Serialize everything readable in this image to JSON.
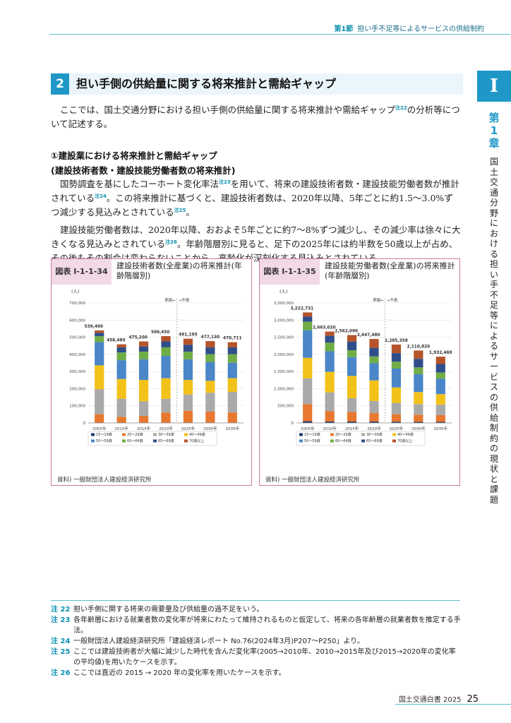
{
  "header": {
    "section": "第1節",
    "title": "担い手不足等によるサービスの供給制約"
  },
  "side": {
    "roman": "I",
    "chapter": [
      "第",
      "1",
      "章"
    ],
    "title": [
      "国",
      "土",
      "交",
      "通",
      "分",
      "野",
      "に",
      "お",
      "け",
      "る",
      "担",
      "い",
      "手",
      "不",
      "足",
      "等",
      "に",
      "よ",
      "る",
      "サ",
      "ー",
      "ビ",
      "ス",
      "の",
      "供",
      "給",
      "制",
      "約",
      "の",
      "現",
      "状",
      "と",
      "課",
      "題"
    ]
  },
  "section": {
    "number": "2",
    "title": "担い手側の供給量に関する将来推計と需給ギャップ"
  },
  "intro": {
    "text1": "ここでは、国土交通分野における担い手側の供給量に関する将来推計や需給ギャップ",
    "sup1": "注22",
    "text2": "の分析等について記述する。"
  },
  "sub1": "①建設業における将来推計と需給ギャップ",
  "sub2": "(建設技術者数・建設技能労働者数の将来推計)",
  "para1": {
    "t1": "国勢調査を基にしたコーホート変化率法",
    "s1": "注23",
    "t2": "を用いて、将来の建設技術者数・建設技能労働者数が推計されている",
    "s2": "注24",
    "t3": "。この将来推計に基づくと、建設技術者数は、2020年以降、5年ごとに約1.5～3.0%ずつ減少する見込みとされている",
    "s3": "注25",
    "t4": "。"
  },
  "para2": {
    "t1": "建設技能労働者数は、2020年以降、おおよそ5年ごとに約7～8%ずつ減少し、その減少率は徐々に大きくなる見込みとされている",
    "s1": "注26",
    "t2": "。年齢階層別に見ると、足下の2025年には約半数を50歳以上が占め、その後もその割合は変わらないことから、高齢化が深刻化する見込みとされている。"
  },
  "figure_left": {
    "label": "図表 I-1-1-34",
    "title": "建設技術者数(全産業)の将来推計(年齢階層別)",
    "source": "資料) 一般財団法人建設経済研究所"
  },
  "figure_right": {
    "label": "図表 I-1-1-35",
    "title": "建設技能労働者数(全産業)の将来推計(年齢階層別)",
    "source": "資料) 一般財団法人建設経済研究所"
  },
  "colors": {
    "15-19": "#1f3a6b",
    "20-29": "#e8782f",
    "30-39": "#a9a9a9",
    "40-49": "#f2c21a",
    "50-59": "#4a86c8",
    "60-64": "#70ad47",
    "65-69": "#2f4e8a",
    "70+": "#b5542a"
  },
  "chart_data": [
    {
      "type": "bar",
      "stacked": true,
      "unit": "(人)",
      "categories": [
        "2005年",
        "2010年",
        "2015年",
        "2020年",
        "2025年",
        "2030年",
        "2035年"
      ],
      "totals": [
        539490,
        458480,
        475200,
        506450,
        491195,
        477130,
        470711
      ],
      "total_labels": [
        "539,490",
        "458,480",
        "475,200",
        "506,450",
        "491,195",
        "477,130",
        "470,711"
      ],
      "ylim": [
        0,
        700000
      ],
      "yticks": [
        "0",
        "100,000",
        "200,000",
        "300,000",
        "400,000",
        "500,000",
        "600,000",
        "700,000"
      ],
      "annotation": {
        "actual": "実績←",
        "forecast": "→予測"
      },
      "series": [
        {
          "name": "15～19歳",
          "values": [
            1000,
            1000,
            1000,
            1000,
            1000,
            1000,
            1000
          ]
        },
        {
          "name": "20～29歳",
          "values": [
            50000,
            35000,
            40000,
            60000,
            70000,
            65000,
            60000
          ]
        },
        {
          "name": "30～39歳",
          "values": [
            145000,
            105000,
            85000,
            80000,
            95000,
            110000,
            120000
          ]
        },
        {
          "name": "40～49歳",
          "values": [
            140000,
            115000,
            125000,
            120000,
            85000,
            70000,
            80000
          ]
        },
        {
          "name": "50～59歳",
          "values": [
            135000,
            110000,
            120000,
            130000,
            120000,
            110000,
            90000
          ]
        },
        {
          "name": "60～64歳",
          "values": [
            35000,
            45000,
            45000,
            50000,
            45000,
            45000,
            50000
          ]
        },
        {
          "name": "65～69歳",
          "values": [
            20000,
            30000,
            30000,
            35000,
            40000,
            40000,
            40000
          ]
        },
        {
          "name": "70歳以上",
          "values": [
            13490,
            17480,
            29200,
            30450,
            35195,
            36130,
            29711
          ]
        }
      ]
    },
    {
      "type": "bar",
      "stacked": true,
      "unit": "(人)",
      "categories": [
        "2005年",
        "2010年",
        "2015年",
        "2020年",
        "2025年",
        "2030年",
        "2035年"
      ],
      "totals": [
        3222731,
        2663020,
        2562090,
        2447480,
        2285358,
        2110820,
        1932469
      ],
      "total_labels": [
        "3,222,731",
        "2,663,020",
        "2,562,090",
        "2,447,480",
        "2,285,358",
        "2,110,820",
        "1,932,469"
      ],
      "ylim": [
        0,
        3500000
      ],
      "yticks": [
        "0",
        "500,000",
        "1,000,000",
        "1,500,000",
        "2,000,000",
        "2,500,000",
        "3,000,000",
        "3,500,000"
      ],
      "annotation": {
        "actual": "実績←",
        "forecast": "→予測"
      },
      "series": [
        {
          "name": "15～19歳",
          "values": [
            50000,
            40000,
            40000,
            40000,
            35000,
            30000,
            30000
          ]
        },
        {
          "name": "20～29歳",
          "values": [
            500000,
            300000,
            280000,
            250000,
            220000,
            210000,
            200000
          ]
        },
        {
          "name": "30～39歳",
          "values": [
            750000,
            550000,
            400000,
            350000,
            330000,
            310000,
            300000
          ]
        },
        {
          "name": "40～49歳",
          "values": [
            600000,
            600000,
            650000,
            600000,
            450000,
            350000,
            310000
          ]
        },
        {
          "name": "50～59歳",
          "values": [
            800000,
            600000,
            550000,
            500000,
            550000,
            520000,
            450000
          ]
        },
        {
          "name": "60～64歳",
          "values": [
            250000,
            250000,
            200000,
            200000,
            200000,
            200000,
            180000
          ]
        },
        {
          "name": "65～69歳",
          "values": [
            150000,
            200000,
            250000,
            250000,
            250000,
            250000,
            250000
          ]
        },
        {
          "name": "70歳以上",
          "values": [
            122731,
            123020,
            192090,
            257480,
            250358,
            240820,
            212469
          ]
        }
      ]
    }
  ],
  "notes": [
    {
      "key": "注 22",
      "text": "担い手側に関する将来の需要量及び供給量の過不足をいう。"
    },
    {
      "key": "注 23",
      "text": "各年齢層における就業者数の変化率が将来にわたって維持されるものと仮定して、将来の各年齢層の就業者数を推定する手法。"
    },
    {
      "key": "注 24",
      "text": "一般財団法人建設経済研究所「建設経済レポート No.76(2024年3月)P207～P250」より。"
    },
    {
      "key": "注 25",
      "text": "ここでは建設技術者が大幅に減少した時代を含んだ変化率(2005→2010年、2010→2015年及び2015→2020年の変化率の平均値)を用いたケースを示す。"
    },
    {
      "key": "注 26",
      "text": "ここでは直近の 2015 → 2020 年の変化率を用いたケースを示す。"
    }
  ],
  "footer": {
    "book": "国土交通白書 2025",
    "page": "25"
  }
}
